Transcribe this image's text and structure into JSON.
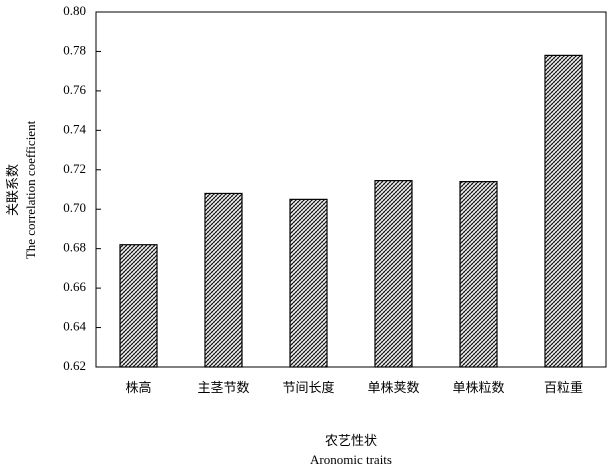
{
  "chart_data": {
    "type": "bar",
    "ylabel": [
      "关联系数",
      "The correlation coefficient"
    ],
    "xlabel": [
      "农艺性状",
      "Aronomic traits"
    ],
    "categories": [
      "株高",
      "主茎节数",
      "节间长度",
      "单株荚数",
      "单株粒数",
      "百粒重"
    ],
    "values": [
      0.682,
      0.708,
      0.705,
      0.7145,
      0.714,
      0.778
    ],
    "color": "#000000",
    "ylim": [
      0.62,
      0.8
    ],
    "yticks": [
      0.62,
      0.64,
      0.66,
      0.68,
      {
        "value": 0.7,
        "label": "0.70"
      },
      0.72,
      0.74,
      0.76,
      0.78,
      {
        "value": 0.8,
        "label": "0.80"
      }
    ],
    "grid": false
  }
}
